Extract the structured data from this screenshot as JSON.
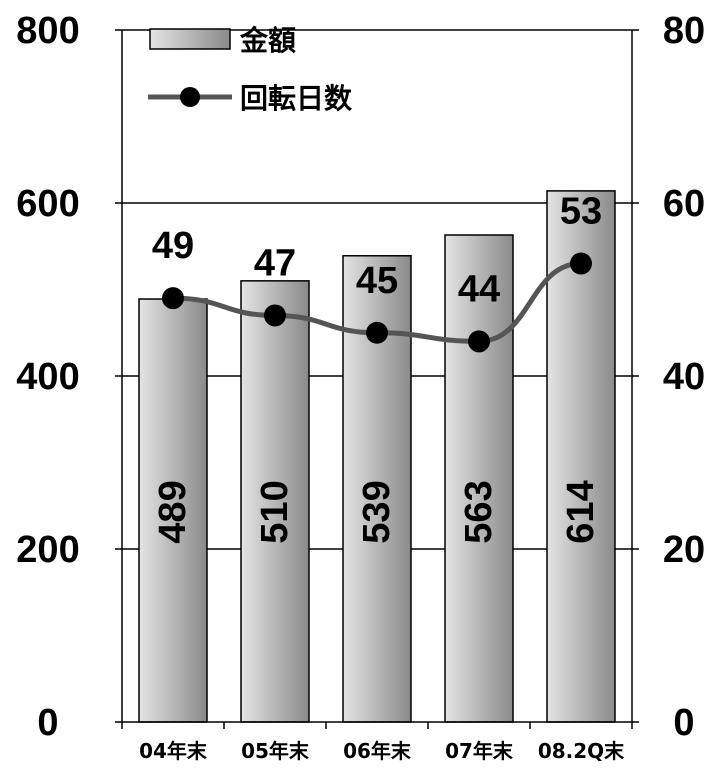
{
  "chart_data": {
    "type": "bar",
    "categories": [
      "04年末",
      "05年末",
      "06年末",
      "07年末",
      "08.2Q末"
    ],
    "series": [
      {
        "name": "金額",
        "type": "bar",
        "axis": "left",
        "values": [
          489,
          510,
          539,
          563,
          614
        ]
      },
      {
        "name": "回転日数",
        "type": "line",
        "axis": "right",
        "values": [
          49,
          47,
          45,
          44,
          53
        ]
      }
    ],
    "ylim": [
      0,
      800
    ],
    "y2lim": [
      0,
      80
    ],
    "yticks": [
      "0",
      "200",
      "400",
      "600",
      "800"
    ],
    "y2ticks": [
      "0",
      "20",
      "40",
      "60",
      "80"
    ],
    "grid": true,
    "legend": "top-left"
  }
}
